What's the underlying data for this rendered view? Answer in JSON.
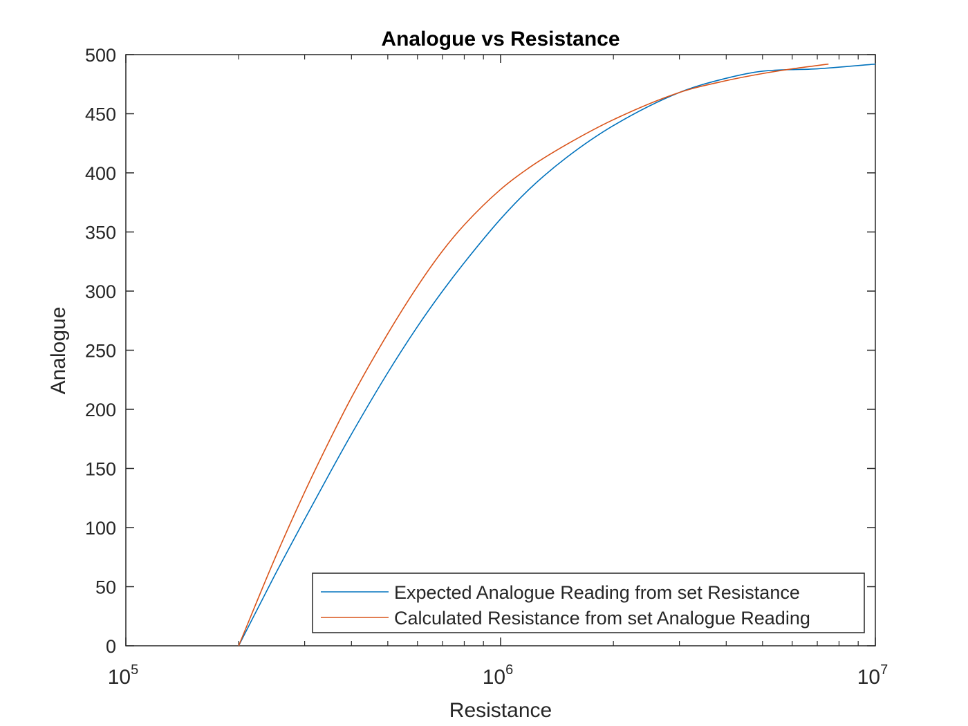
{
  "chart_data": {
    "type": "line",
    "title": "Analogue vs Resistance",
    "xlabel": "Resistance",
    "ylabel": "Analogue",
    "xscale": "log",
    "xlim": [
      100000,
      10000000
    ],
    "ylim": [
      0,
      500
    ],
    "x_tick_labels": [
      {
        "base": "10",
        "exp": "5",
        "value": 100000
      },
      {
        "base": "10",
        "exp": "6",
        "value": 1000000
      },
      {
        "base": "10",
        "exp": "7",
        "value": 10000000
      }
    ],
    "y_tick_labels": [
      "0",
      "50",
      "100",
      "150",
      "200",
      "250",
      "300",
      "350",
      "400",
      "450",
      "500"
    ],
    "grid": false,
    "legend_position": "bottom-right",
    "series": [
      {
        "name": "Expected Analogue Reading from set Resistance",
        "color": "#0072BD",
        "x": [
          200000,
          250000,
          300000,
          350000,
          400000,
          500000,
          600000,
          700000,
          800000,
          1000000,
          1200000,
          1500000,
          2000000,
          3000000,
          4000000,
          5000000,
          7000000,
          10000000
        ],
        "y": [
          0,
          60,
          107,
          146,
          179,
          231,
          270,
          300,
          324,
          361,
          387,
          413,
          440,
          468,
          480,
          486,
          488,
          492
        ]
      },
      {
        "name": "Calculated Resistance from set Analogue Reading",
        "color": "#D95319",
        "x": [
          200000,
          250000,
          300000,
          350000,
          400000,
          500000,
          600000,
          700000,
          800000,
          1000000,
          1200000,
          1500000,
          2000000,
          3000000,
          4000000,
          5000000,
          6000000,
          7500000
        ],
        "y": [
          0,
          74,
          130,
          174,
          210,
          264,
          304,
          334,
          356,
          386,
          405,
          424,
          445,
          468,
          478,
          484,
          488,
          492
        ]
      }
    ]
  }
}
